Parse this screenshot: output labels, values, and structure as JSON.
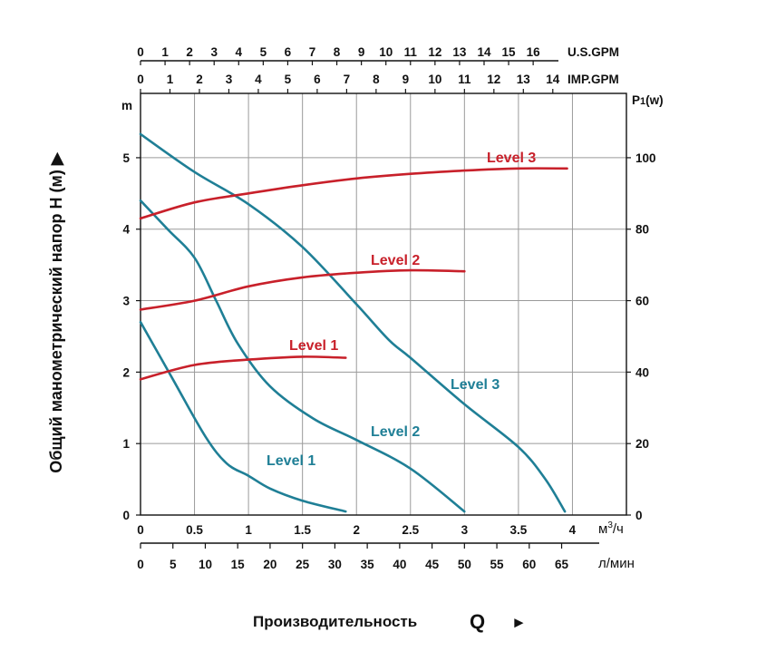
{
  "chart_data": {
    "type": "line",
    "y_left": {
      "unit": "m",
      "ticks": [
        "0",
        "1",
        "2",
        "3",
        "4",
        "5"
      ],
      "ylim": [
        0,
        5.9
      ]
    },
    "y_right": {
      "unit_prefix": "P",
      "unit_sub": "1",
      "unit_suffix": "(w)",
      "ticks": [
        "0",
        "20",
        "40",
        "60",
        "80",
        "100"
      ],
      "ylim": [
        0,
        118
      ]
    },
    "x_m3h": {
      "unit_base": "м",
      "unit_sup": "3",
      "unit_suffix": "/ч",
      "ticks": [
        "0",
        "0.5",
        "1",
        "1.5",
        "2",
        "2.5",
        "3",
        "3.5",
        "4"
      ],
      "xlim": [
        0,
        4.5
      ]
    },
    "x_lmin": {
      "unit": "л/мин",
      "ticks": [
        "0",
        "5",
        "10",
        "15",
        "20",
        "25",
        "30",
        "35",
        "40",
        "45",
        "50",
        "55",
        "60",
        "65"
      ],
      "max": 75
    },
    "x_usgpm": {
      "unit": "U.S.GPM",
      "ticks": [
        "0",
        "1",
        "2",
        "3",
        "4",
        "5",
        "6",
        "7",
        "8",
        "9",
        "10",
        "11",
        "12",
        "13",
        "14",
        "15",
        "16"
      ],
      "max": 19.8
    },
    "x_impgpm": {
      "unit": "IMP.GPM",
      "ticks": [
        "0",
        "1",
        "2",
        "3",
        "4",
        "5",
        "6",
        "7",
        "8",
        "9",
        "10",
        "11",
        "12",
        "13",
        "14"
      ],
      "max": 16.5
    },
    "ylabel": "Общий манометрический напор H (м) ▶",
    "xlabel": "Производительность",
    "xlabel_q": "Q",
    "xlabel_arrow": "►",
    "head_series": [
      {
        "name": "Level 1",
        "color": "#1f7f96",
        "points": [
          [
            0,
            2.7
          ],
          [
            0.3,
            1.9
          ],
          [
            0.6,
            1.1
          ],
          [
            0.8,
            0.72
          ],
          [
            1.0,
            0.55
          ],
          [
            1.2,
            0.37
          ],
          [
            1.5,
            0.2
          ],
          [
            1.9,
            0.05
          ]
        ]
      },
      {
        "name": "Level 2",
        "color": "#1f7f96",
        "points": [
          [
            0,
            4.4
          ],
          [
            0.25,
            4.0
          ],
          [
            0.5,
            3.6
          ],
          [
            0.7,
            3.0
          ],
          [
            0.9,
            2.4
          ],
          [
            1.2,
            1.8
          ],
          [
            1.6,
            1.35
          ],
          [
            2.0,
            1.05
          ],
          [
            2.5,
            0.65
          ],
          [
            3.0,
            0.05
          ]
        ]
      },
      {
        "name": "Level 3",
        "color": "#1f7f96",
        "points": [
          [
            0,
            5.33
          ],
          [
            0.5,
            4.8
          ],
          [
            1.0,
            4.35
          ],
          [
            1.5,
            3.75
          ],
          [
            2.0,
            2.95
          ],
          [
            2.3,
            2.45
          ],
          [
            2.5,
            2.2
          ],
          [
            3.0,
            1.55
          ],
          [
            3.5,
            0.95
          ],
          [
            3.75,
            0.5
          ],
          [
            3.93,
            0.05
          ]
        ]
      }
    ],
    "power_series": [
      {
        "name": "Level 1",
        "color": "#c8202a",
        "points": [
          [
            0,
            38
          ],
          [
            0.5,
            42
          ],
          [
            1.0,
            43.5
          ],
          [
            1.5,
            44.3
          ],
          [
            1.9,
            44
          ]
        ]
      },
      {
        "name": "Level 2",
        "color": "#c8202a",
        "points": [
          [
            0,
            57.5
          ],
          [
            0.5,
            60
          ],
          [
            1.0,
            64
          ],
          [
            1.5,
            66.5
          ],
          [
            2.0,
            67.8
          ],
          [
            2.5,
            68.5
          ],
          [
            3.0,
            68.2
          ]
        ]
      },
      {
        "name": "Level 3",
        "color": "#c8202a",
        "points": [
          [
            0,
            83
          ],
          [
            0.5,
            87.5
          ],
          [
            1.0,
            90
          ],
          [
            1.5,
            92.3
          ],
          [
            2.0,
            94.2
          ],
          [
            2.5,
            95.5
          ],
          [
            3.0,
            96.4
          ],
          [
            3.5,
            97
          ],
          [
            3.95,
            97
          ]
        ]
      }
    ],
    "head_labels": [
      "Level 1",
      "Level 2",
      "Level 3"
    ],
    "power_labels": [
      "Level 1",
      "Level 2",
      "Level 3"
    ]
  }
}
